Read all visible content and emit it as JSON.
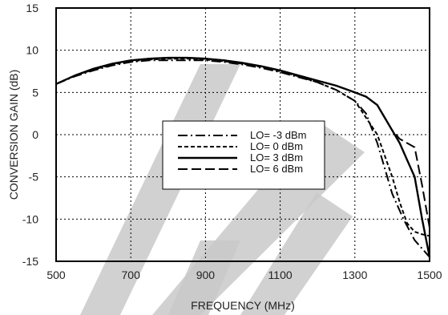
{
  "chart_data": {
    "type": "line",
    "title": "",
    "xlabel": "FREQUENCY (MHz)",
    "ylabel": "CONVERSION GAIN (dB)",
    "xlim": [
      500,
      1500
    ],
    "ylim": [
      -15,
      15
    ],
    "xticks": [
      500,
      700,
      900,
      1100,
      1300,
      1500
    ],
    "yticks": [
      -15,
      -10,
      -5,
      0,
      5,
      10,
      15
    ],
    "grid": true,
    "legend_position": "center-right",
    "watermark_color": "#c9c9c9",
    "series": [
      {
        "name": "LO= -3 dBm",
        "style": "dash-dot",
        "color": "#000000",
        "x": [
          500,
          550,
          600,
          650,
          700,
          750,
          800,
          850,
          900,
          950,
          1000,
          1050,
          1100,
          1150,
          1200,
          1250,
          1300,
          1330,
          1360,
          1380,
          1400,
          1430,
          1460,
          1480,
          1500
        ],
        "y": [
          6.0,
          6.9,
          7.6,
          8.2,
          8.6,
          8.8,
          8.8,
          8.8,
          8.8,
          8.6,
          8.3,
          7.9,
          7.4,
          6.8,
          6.2,
          5.3,
          4.0,
          2.5,
          -1.0,
          -4.0,
          -7.0,
          -10.0,
          -12.5,
          -13.5,
          -14.5
        ]
      },
      {
        "name": "LO=  0 dBm",
        "style": "dashed",
        "color": "#000000",
        "x": [
          500,
          550,
          600,
          650,
          700,
          750,
          800,
          850,
          900,
          950,
          1000,
          1050,
          1100,
          1150,
          1200,
          1250,
          1300,
          1330,
          1360,
          1380,
          1400,
          1420,
          1440,
          1460,
          1480,
          1500
        ],
        "y": [
          6.0,
          7.0,
          7.7,
          8.3,
          8.7,
          8.9,
          9.0,
          9.0,
          8.9,
          8.7,
          8.4,
          8.0,
          7.5,
          6.9,
          6.2,
          5.3,
          4.0,
          2.0,
          0.0,
          -2.5,
          -5.0,
          -8.0,
          -10.5,
          -11.5,
          -11.8,
          -12.0
        ]
      },
      {
        "name": "LO=  3 dBm",
        "style": "solid",
        "color": "#000000",
        "x": [
          500,
          550,
          600,
          650,
          700,
          750,
          800,
          850,
          900,
          950,
          1000,
          1050,
          1100,
          1150,
          1200,
          1250,
          1300,
          1330,
          1360,
          1380,
          1400,
          1420,
          1440,
          1460,
          1480,
          1500
        ],
        "y": [
          6.0,
          7.0,
          7.8,
          8.4,
          8.8,
          9.0,
          9.1,
          9.1,
          9.0,
          8.8,
          8.5,
          8.1,
          7.6,
          7.0,
          6.4,
          5.8,
          5.0,
          4.5,
          3.5,
          2.0,
          0.5,
          -1.0,
          -3.0,
          -5.0,
          -10.0,
          -14.5
        ]
      },
      {
        "name": "LO=  6 dBm",
        "style": "long-dash",
        "color": "#000000",
        "x": [
          500,
          550,
          600,
          650,
          700,
          750,
          800,
          850,
          900,
          950,
          1000,
          1050,
          1100,
          1150,
          1200,
          1250,
          1300,
          1330,
          1360,
          1380,
          1400,
          1420,
          1440,
          1460,
          1480,
          1500
        ],
        "y": [
          6.0,
          7.0,
          7.8,
          8.4,
          8.8,
          9.0,
          9.1,
          9.1,
          9.0,
          8.8,
          8.5,
          8.1,
          7.6,
          7.0,
          6.4,
          5.8,
          5.0,
          4.5,
          3.5,
          2.0,
          0.5,
          -0.5,
          -1.0,
          -1.5,
          -6.0,
          -11.0
        ]
      }
    ]
  }
}
